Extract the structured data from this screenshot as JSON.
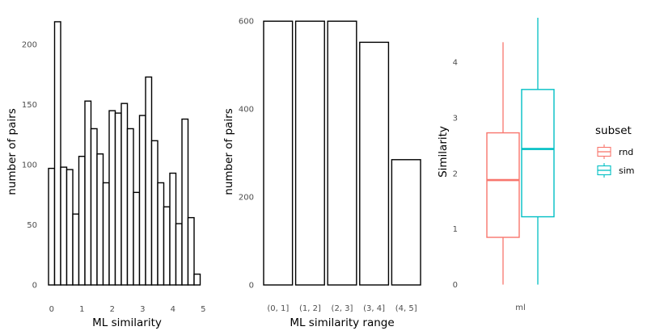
{
  "chart_data": [
    {
      "type": "bar",
      "subtype": "histogram",
      "xlabel": "ML similarity",
      "ylabel": "number of pairs",
      "xticks": [
        0,
        1,
        2,
        3,
        4,
        5
      ],
      "yticks": [
        0,
        50,
        100,
        150,
        200
      ],
      "xlim": [
        -0.1,
        5.1
      ],
      "ylim": [
        0,
        225
      ],
      "bin_width": 0.2,
      "bins_start": [
        -0.1,
        0.1,
        0.3,
        0.5,
        0.7,
        0.9,
        1.1,
        1.3,
        1.5,
        1.7,
        1.9,
        2.1,
        2.3,
        2.5,
        2.7,
        2.9,
        3.1,
        3.3,
        3.5,
        3.7,
        3.9,
        4.1,
        4.3,
        4.5,
        4.7
      ],
      "values": [
        97,
        219,
        98,
        96,
        59,
        107,
        153,
        130,
        109,
        85,
        145,
        143,
        151,
        130,
        77,
        141,
        173,
        120,
        85,
        65,
        93,
        51,
        138,
        56,
        9
      ],
      "grid": false
    },
    {
      "type": "bar",
      "xlabel": "ML similarity range",
      "ylabel": "number of pairs",
      "categories": [
        "(0, 1]",
        "(1, 2]",
        "(2, 3]",
        "(3, 4]",
        "(4, 5]"
      ],
      "values": [
        600,
        600,
        600,
        552,
        285
      ],
      "yticks": [
        0,
        200,
        400,
        600
      ],
      "ylim": [
        0,
        628
      ],
      "grid": false
    },
    {
      "type": "boxplot",
      "xlabel": "",
      "ylabel": "Similarity",
      "categories": [
        "ml"
      ],
      "yticks": [
        0,
        1,
        2,
        3,
        4
      ],
      "ylim": [
        -0.05,
        4.8
      ],
      "legend": {
        "title": "subset",
        "position": "right"
      },
      "series": [
        {
          "name": "rnd",
          "color": "#f8766d",
          "min": 0.0,
          "q1": 0.85,
          "median": 1.88,
          "q3": 2.73,
          "max": 4.36
        },
        {
          "name": "sim",
          "color": "#00bfc4",
          "min": 0.0,
          "q1": 1.22,
          "median": 2.44,
          "q3": 3.51,
          "max": 4.8
        }
      ],
      "grid": false
    }
  ]
}
